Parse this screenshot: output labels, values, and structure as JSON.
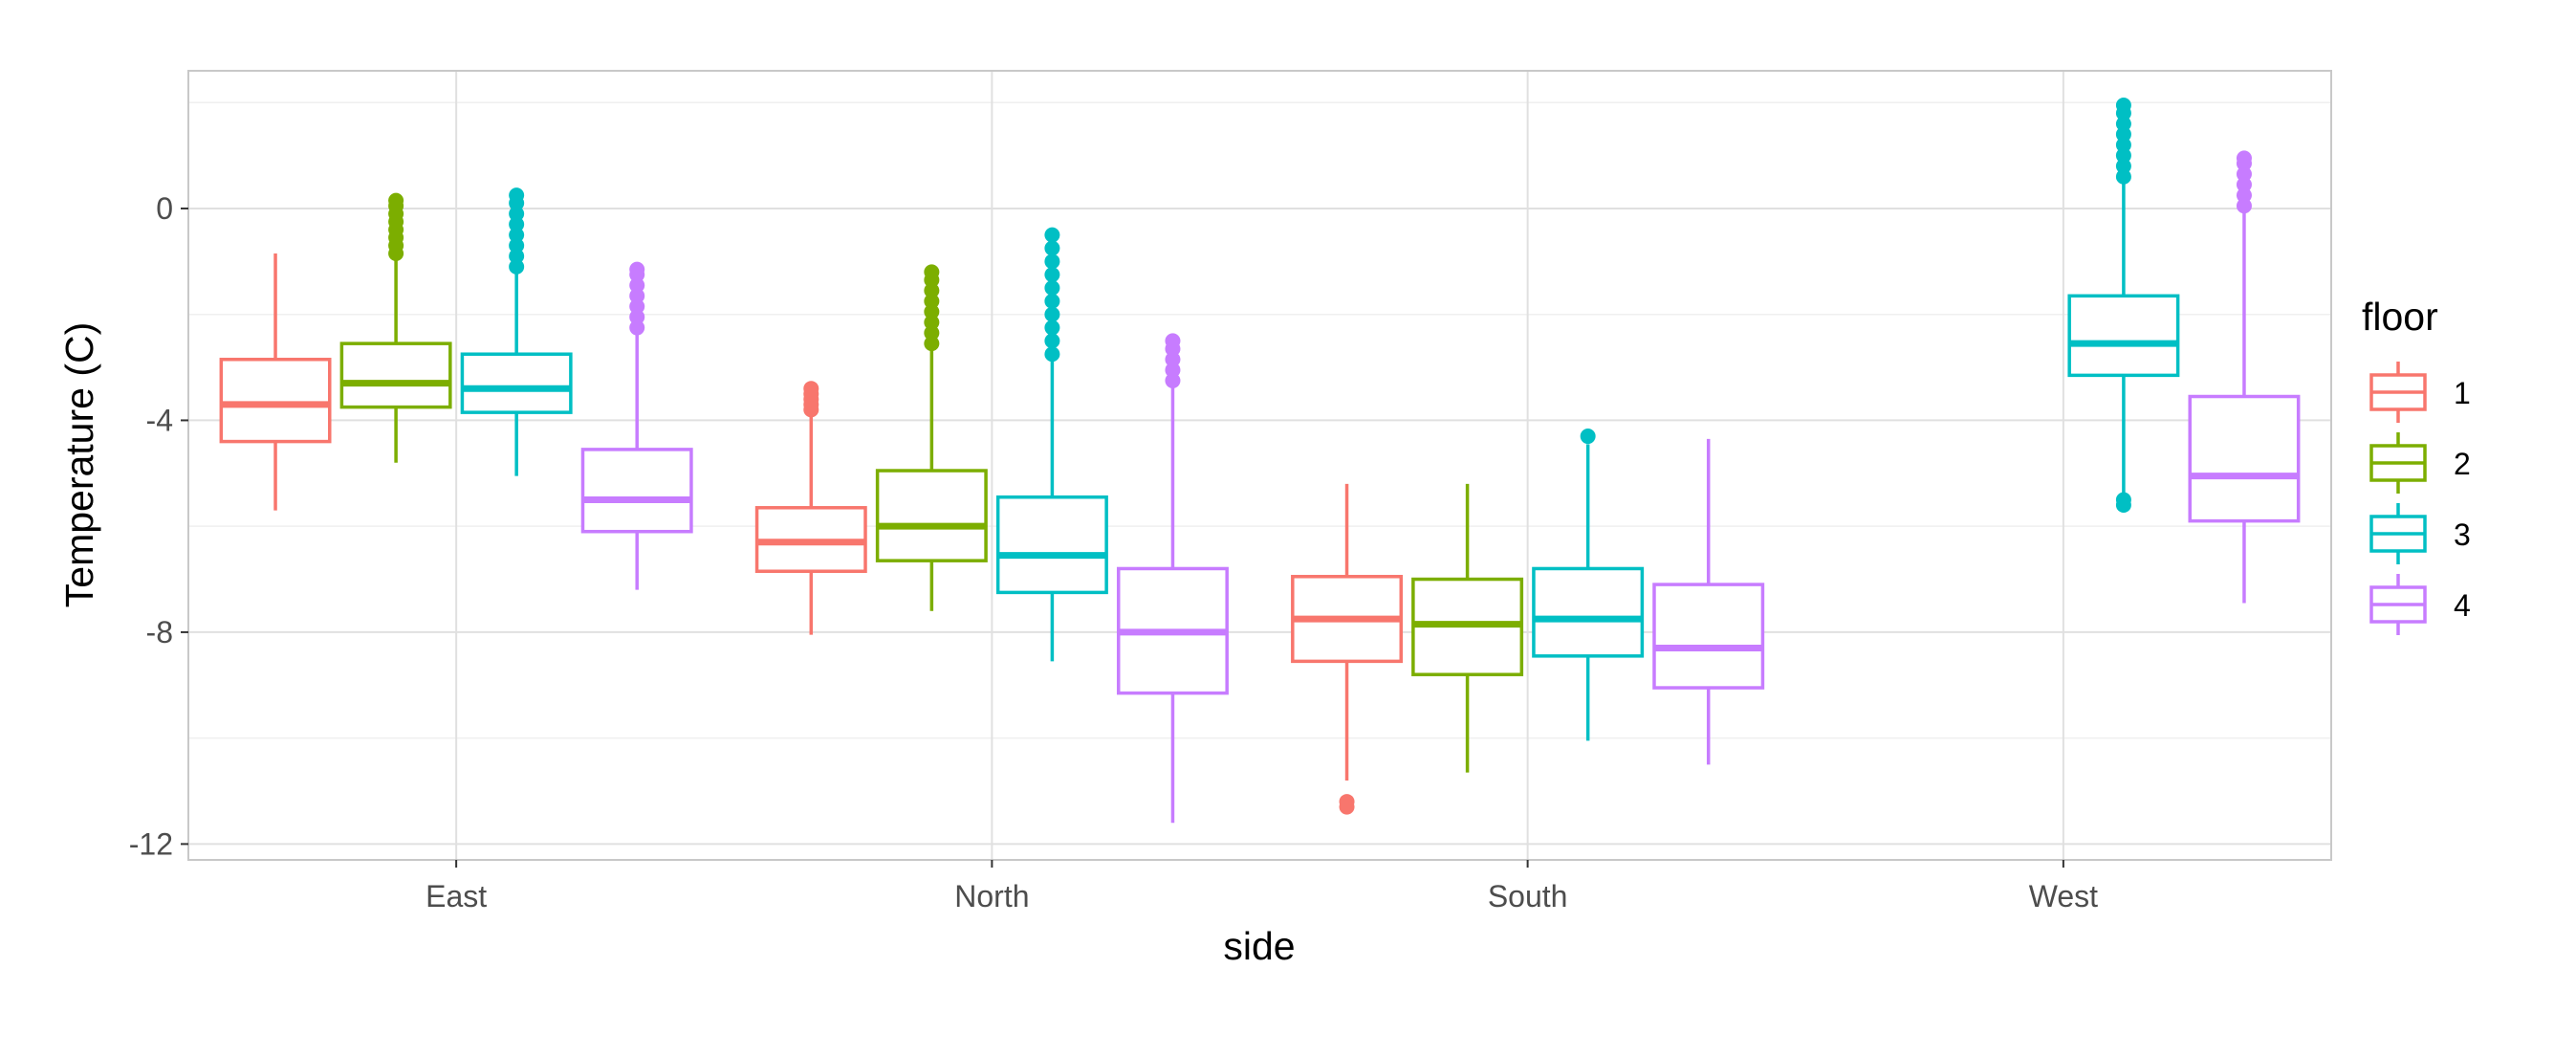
{
  "chart_data": {
    "type": "boxplot",
    "title": "",
    "xlabel": "side",
    "ylabel": "Temperature (C)",
    "ylim": [
      -12.3,
      2.6
    ],
    "yticks": [
      -12,
      -8,
      -4,
      0
    ],
    "ytick_labels": [
      "-12",
      "-8",
      "-4",
      "0"
    ],
    "grid": true,
    "legend": {
      "title": "floor",
      "position": "right"
    },
    "categories": [
      "East",
      "North",
      "South",
      "West"
    ],
    "series": [
      {
        "name": "1",
        "color": "#F8766D",
        "boxes": [
          {
            "category": "East",
            "whisker_low": -5.7,
            "q1": -4.4,
            "median": -3.7,
            "q3": -2.85,
            "whisker_high": -0.85,
            "outliers": []
          },
          {
            "category": "North",
            "whisker_low": -8.05,
            "q1": -6.85,
            "median": -6.3,
            "q3": -5.65,
            "whisker_high": -3.85,
            "outliers": [
              -3.8,
              -3.7,
              -3.6,
              -3.5,
              -3.4
            ]
          },
          {
            "category": "South",
            "whisker_low": -10.8,
            "q1": -8.55,
            "median": -7.75,
            "q3": -6.95,
            "whisker_high": -5.2,
            "outliers": [
              -11.2,
              -11.3
            ]
          }
        ]
      },
      {
        "name": "2",
        "color": "#7CAE00",
        "boxes": [
          {
            "category": "East",
            "whisker_low": -4.8,
            "q1": -3.75,
            "median": -3.3,
            "q3": -2.55,
            "whisker_high": -0.9,
            "outliers": [
              -0.85,
              -0.7,
              -0.55,
              -0.4,
              -0.25,
              -0.1,
              0.05,
              0.15
            ]
          },
          {
            "category": "North",
            "whisker_low": -7.6,
            "q1": -6.65,
            "median": -6.0,
            "q3": -4.95,
            "whisker_high": -2.6,
            "outliers": [
              -2.55,
              -2.35,
              -2.15,
              -1.95,
              -1.75,
              -1.55,
              -1.35,
              -1.2
            ]
          },
          {
            "category": "South",
            "whisker_low": -10.65,
            "q1": -8.8,
            "median": -7.85,
            "q3": -7.0,
            "whisker_high": -5.2,
            "outliers": []
          }
        ]
      },
      {
        "name": "3",
        "color": "#00BFC4",
        "boxes": [
          {
            "category": "East",
            "whisker_low": -5.05,
            "q1": -3.85,
            "median": -3.4,
            "q3": -2.75,
            "whisker_high": -1.2,
            "outliers": [
              -1.1,
              -0.9,
              -0.7,
              -0.5,
              -0.3,
              -0.1,
              0.1,
              0.25
            ]
          },
          {
            "category": "North",
            "whisker_low": -8.55,
            "q1": -7.25,
            "median": -6.55,
            "q3": -5.45,
            "whisker_high": -2.8,
            "outliers": [
              -2.75,
              -2.5,
              -2.25,
              -2.0,
              -1.75,
              -1.5,
              -1.25,
              -1.0,
              -0.75,
              -0.5
            ]
          },
          {
            "category": "South",
            "whisker_low": -10.05,
            "q1": -8.45,
            "median": -7.75,
            "q3": -6.8,
            "whisker_high": -4.45,
            "outliers": [
              -4.3
            ]
          },
          {
            "category": "West",
            "whisker_low": -5.45,
            "q1": -3.15,
            "median": -2.55,
            "q3": -1.65,
            "whisker_high": 0.5,
            "outliers": [
              -5.5,
              -5.6,
              0.6,
              0.8,
              1.0,
              1.2,
              1.4,
              1.6,
              1.8,
              1.95
            ]
          }
        ]
      },
      {
        "name": "4",
        "color": "#C77CFF",
        "boxes": [
          {
            "category": "East",
            "whisker_low": -7.2,
            "q1": -6.1,
            "median": -5.5,
            "q3": -4.55,
            "whisker_high": -2.3,
            "outliers": [
              -2.25,
              -2.05,
              -1.85,
              -1.65,
              -1.45,
              -1.25,
              -1.15
            ]
          },
          {
            "category": "North",
            "whisker_low": -11.6,
            "q1": -9.15,
            "median": -8.0,
            "q3": -6.8,
            "whisker_high": -3.3,
            "outliers": [
              -3.25,
              -3.05,
              -2.85,
              -2.65,
              -2.5
            ]
          },
          {
            "category": "South",
            "whisker_low": -10.5,
            "q1": -9.05,
            "median": -8.3,
            "q3": -7.1,
            "whisker_high": -4.35,
            "outliers": []
          },
          {
            "category": "West",
            "whisker_low": -7.45,
            "q1": -5.9,
            "median": -5.05,
            "q3": -3.55,
            "whisker_high": 0.0,
            "outliers": [
              0.05,
              0.25,
              0.45,
              0.65,
              0.85,
              0.95
            ]
          }
        ]
      }
    ]
  }
}
